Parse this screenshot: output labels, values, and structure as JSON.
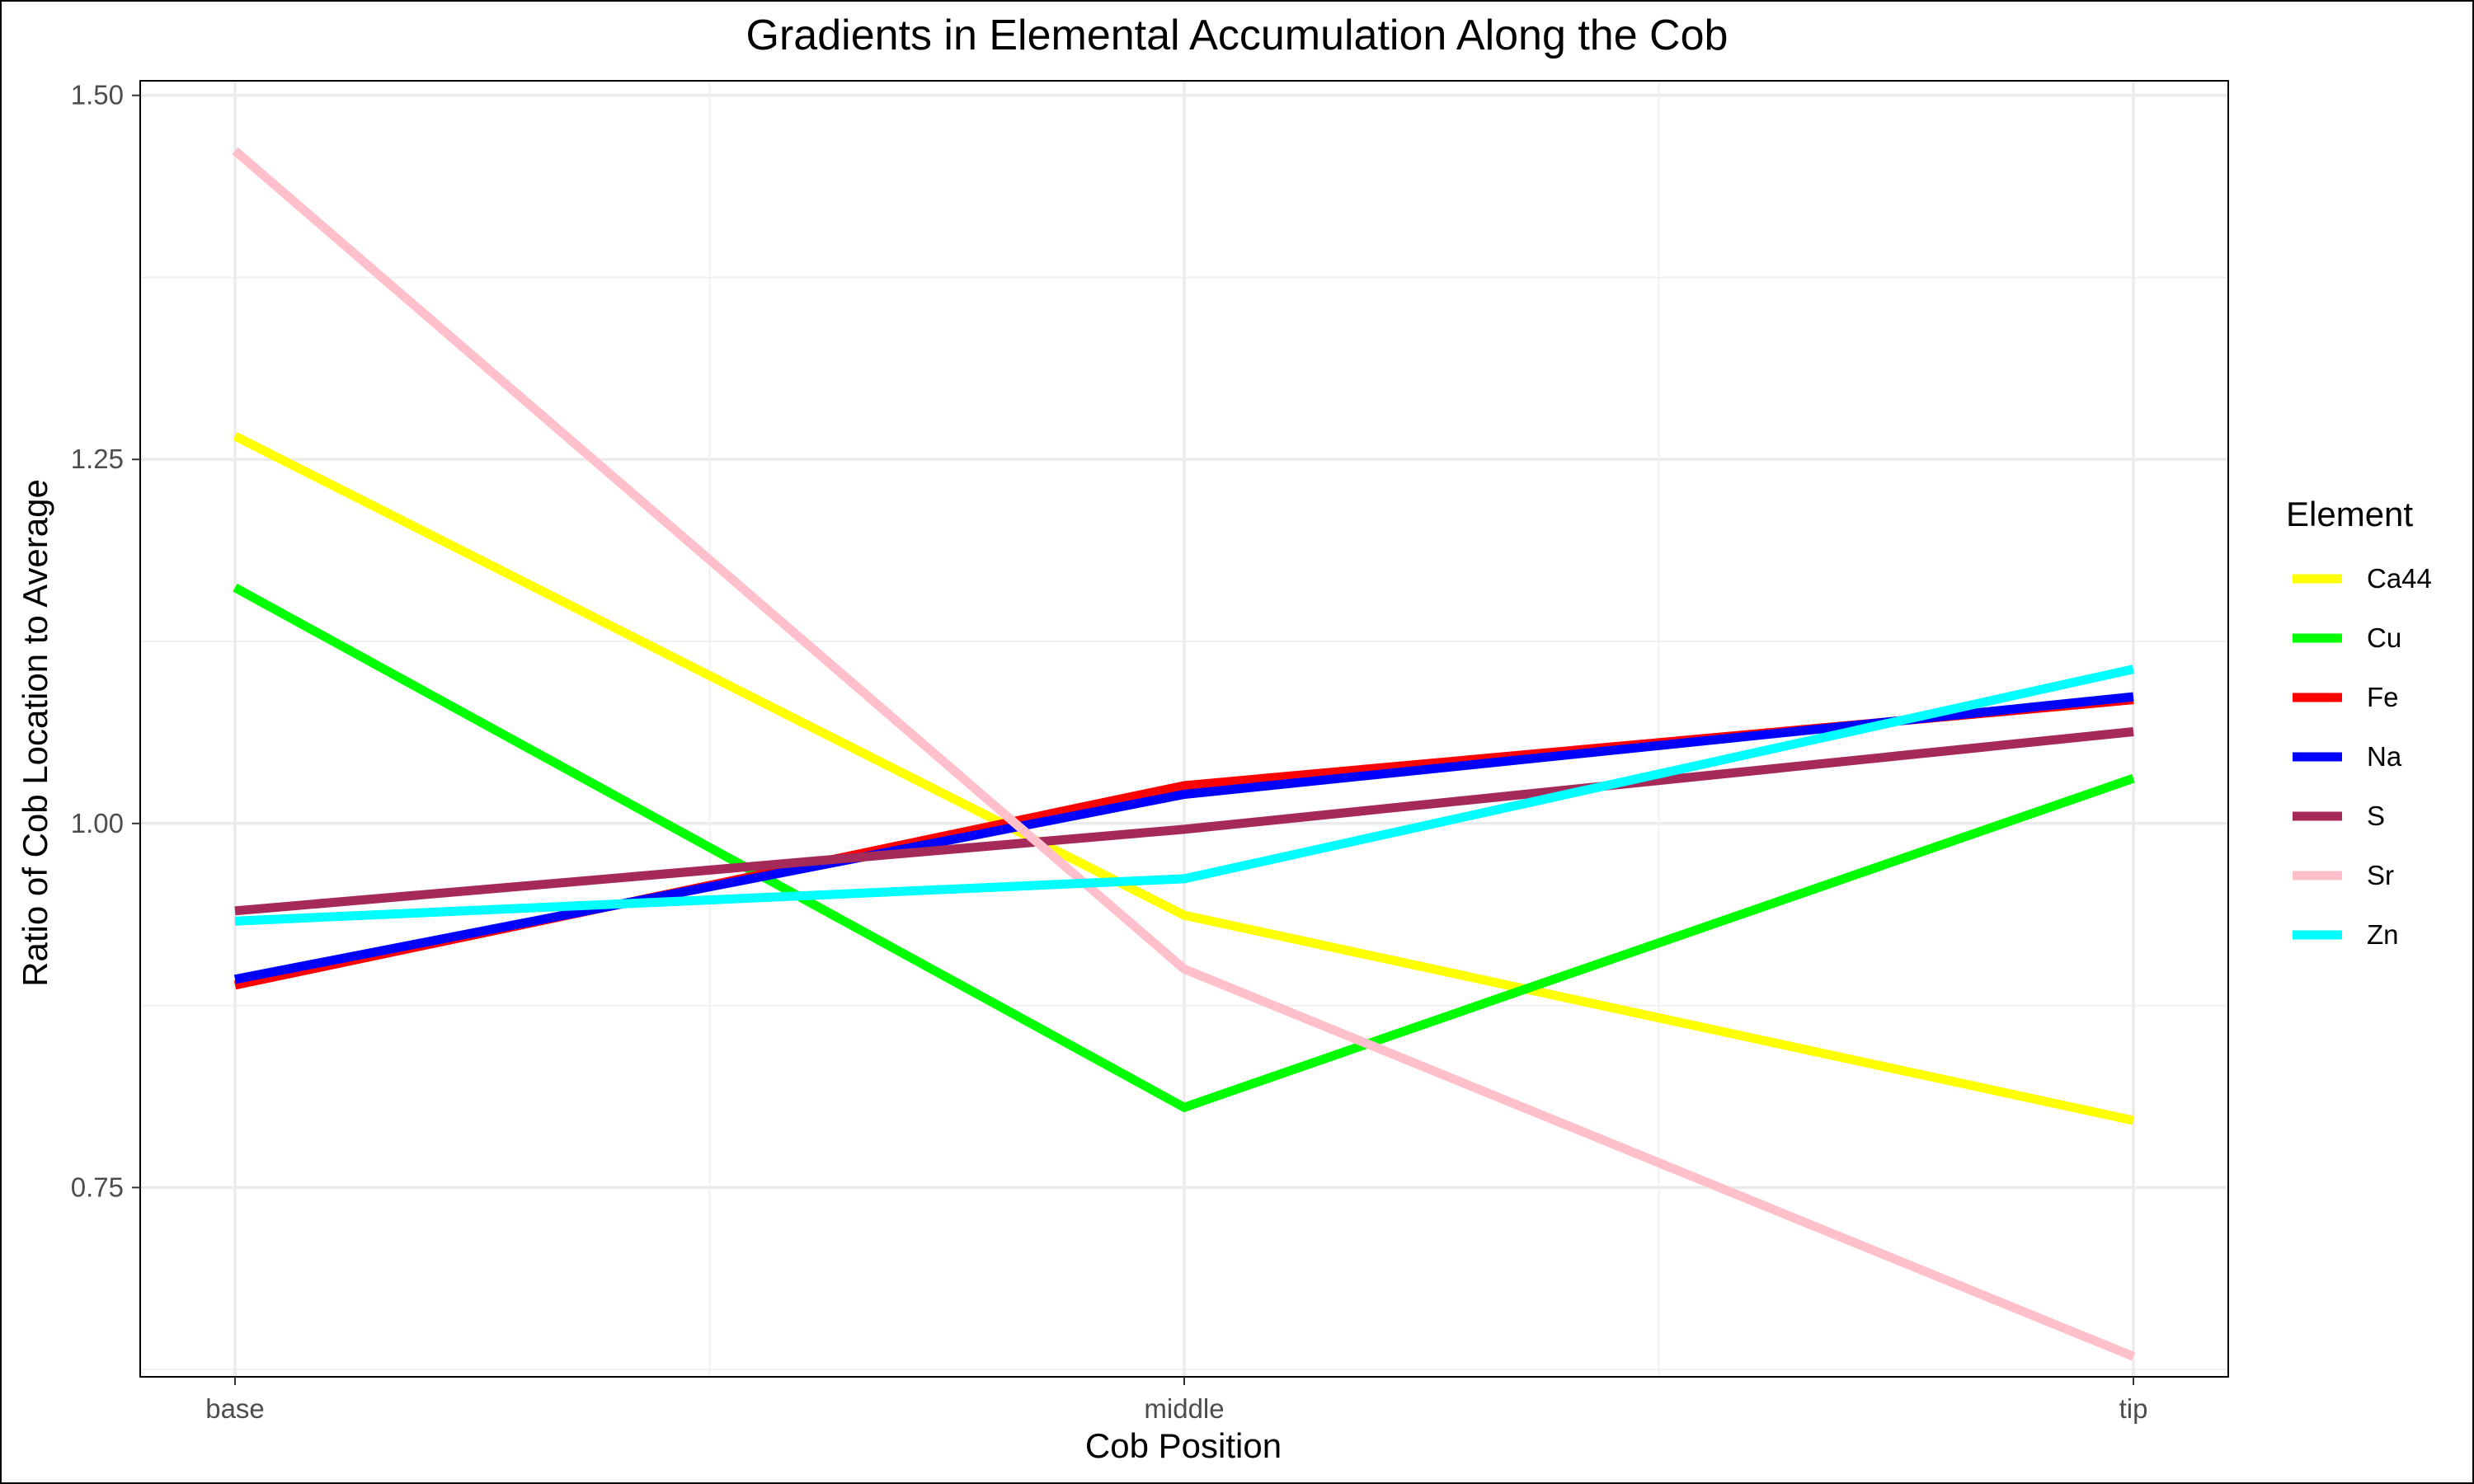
{
  "chart_data": {
    "type": "line",
    "title": "Gradients in Elemental Accumulation Along the Cob",
    "xlabel": "Cob Position",
    "ylabel": "Ratio of Cob Location to Average",
    "categories": [
      "base",
      "middle",
      "tip"
    ],
    "ylim": [
      0.62,
      1.51
    ],
    "yticks": [
      0.75,
      1.0,
      1.25,
      1.5
    ],
    "ytick_labels": [
      "0.75",
      "1.00",
      "1.25",
      "1.50"
    ],
    "grid": true,
    "legend": {
      "title": "Element",
      "placement": "right"
    },
    "series": [
      {
        "name": "Ca44",
        "color": "#FFFF00",
        "values": [
          1.266,
          0.937,
          0.796
        ]
      },
      {
        "name": "Cu",
        "color": "#00FF00",
        "values": [
          1.162,
          0.805,
          1.031
        ]
      },
      {
        "name": "Fe",
        "color": "#FF0000",
        "values": [
          0.889,
          1.026,
          1.085
        ]
      },
      {
        "name": "Na",
        "color": "#0000FF",
        "values": [
          0.893,
          1.02,
          1.087
        ]
      },
      {
        "name": "S",
        "color": "#A52A5A",
        "values": [
          0.94,
          0.996,
          1.063
        ]
      },
      {
        "name": "Sr",
        "color": "#FFC0CB",
        "values": [
          1.462,
          0.9,
          0.634
        ]
      },
      {
        "name": "Zn",
        "color": "#00FFFF",
        "values": [
          0.933,
          0.962,
          1.106
        ]
      }
    ]
  }
}
